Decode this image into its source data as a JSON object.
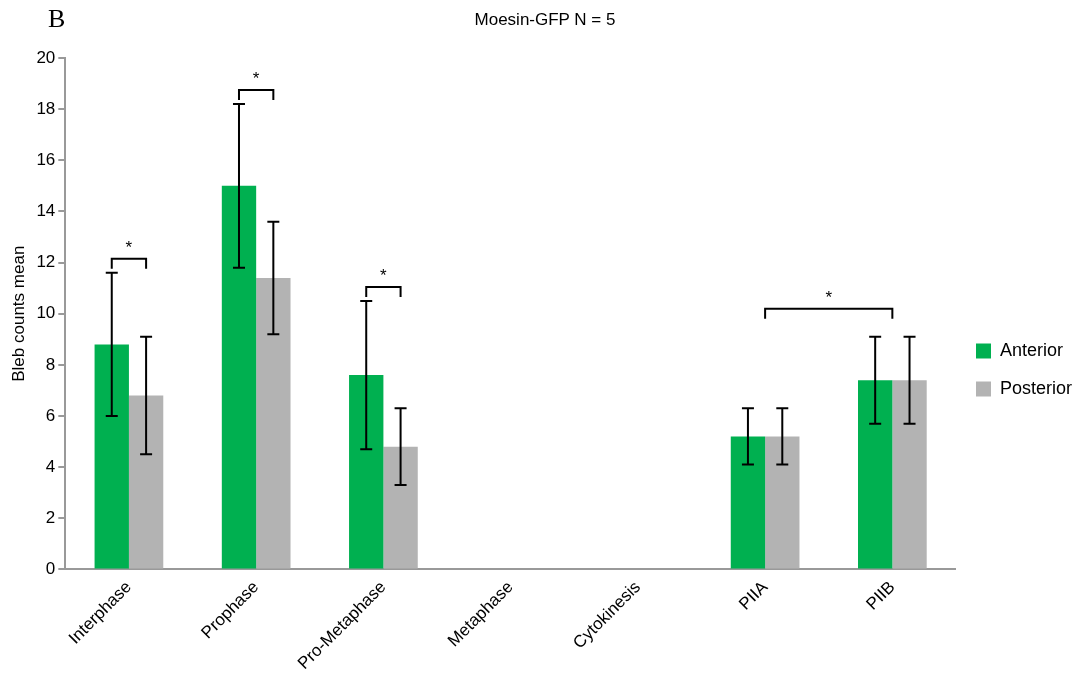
{
  "chart_data": {
    "type": "bar",
    "title": "Moesin-GFP N = 5",
    "ylabel": "Bleb counts mean",
    "categories": [
      "Interphase",
      "Prophase",
      "Pro-Metaphase",
      "Metaphase",
      "Cytokinesis",
      "PIIA",
      "PIIB"
    ],
    "series": [
      {
        "name": "Anterior",
        "color": "#00b050",
        "values": [
          8.8,
          15,
          7.6,
          0,
          0,
          5.2,
          7.4
        ],
        "errors": [
          [
            6.0,
            11.6
          ],
          [
            11.8,
            18.2
          ],
          [
            4.7,
            10.5
          ],
          null,
          null,
          [
            4.1,
            6.3
          ],
          [
            5.7,
            9.1
          ]
        ]
      },
      {
        "name": "Posterior",
        "color": "#b3b3b3",
        "values": [
          6.8,
          11.4,
          4.8,
          0,
          0,
          5.2,
          7.4
        ],
        "errors": [
          [
            4.5,
            9.1
          ],
          [
            9.2,
            13.6
          ],
          [
            3.3,
            6.3
          ],
          null,
          null,
          [
            4.1,
            6.3
          ],
          [
            5.7,
            9.1
          ]
        ]
      }
    ],
    "ylim": [
      0,
      20
    ],
    "yticks": [
      0,
      2,
      4,
      6,
      8,
      10,
      12,
      14,
      16,
      18,
      20
    ],
    "grid": false,
    "legend": "right",
    "annotations": [
      "B",
      "*",
      "*",
      "*",
      "*"
    ]
  }
}
